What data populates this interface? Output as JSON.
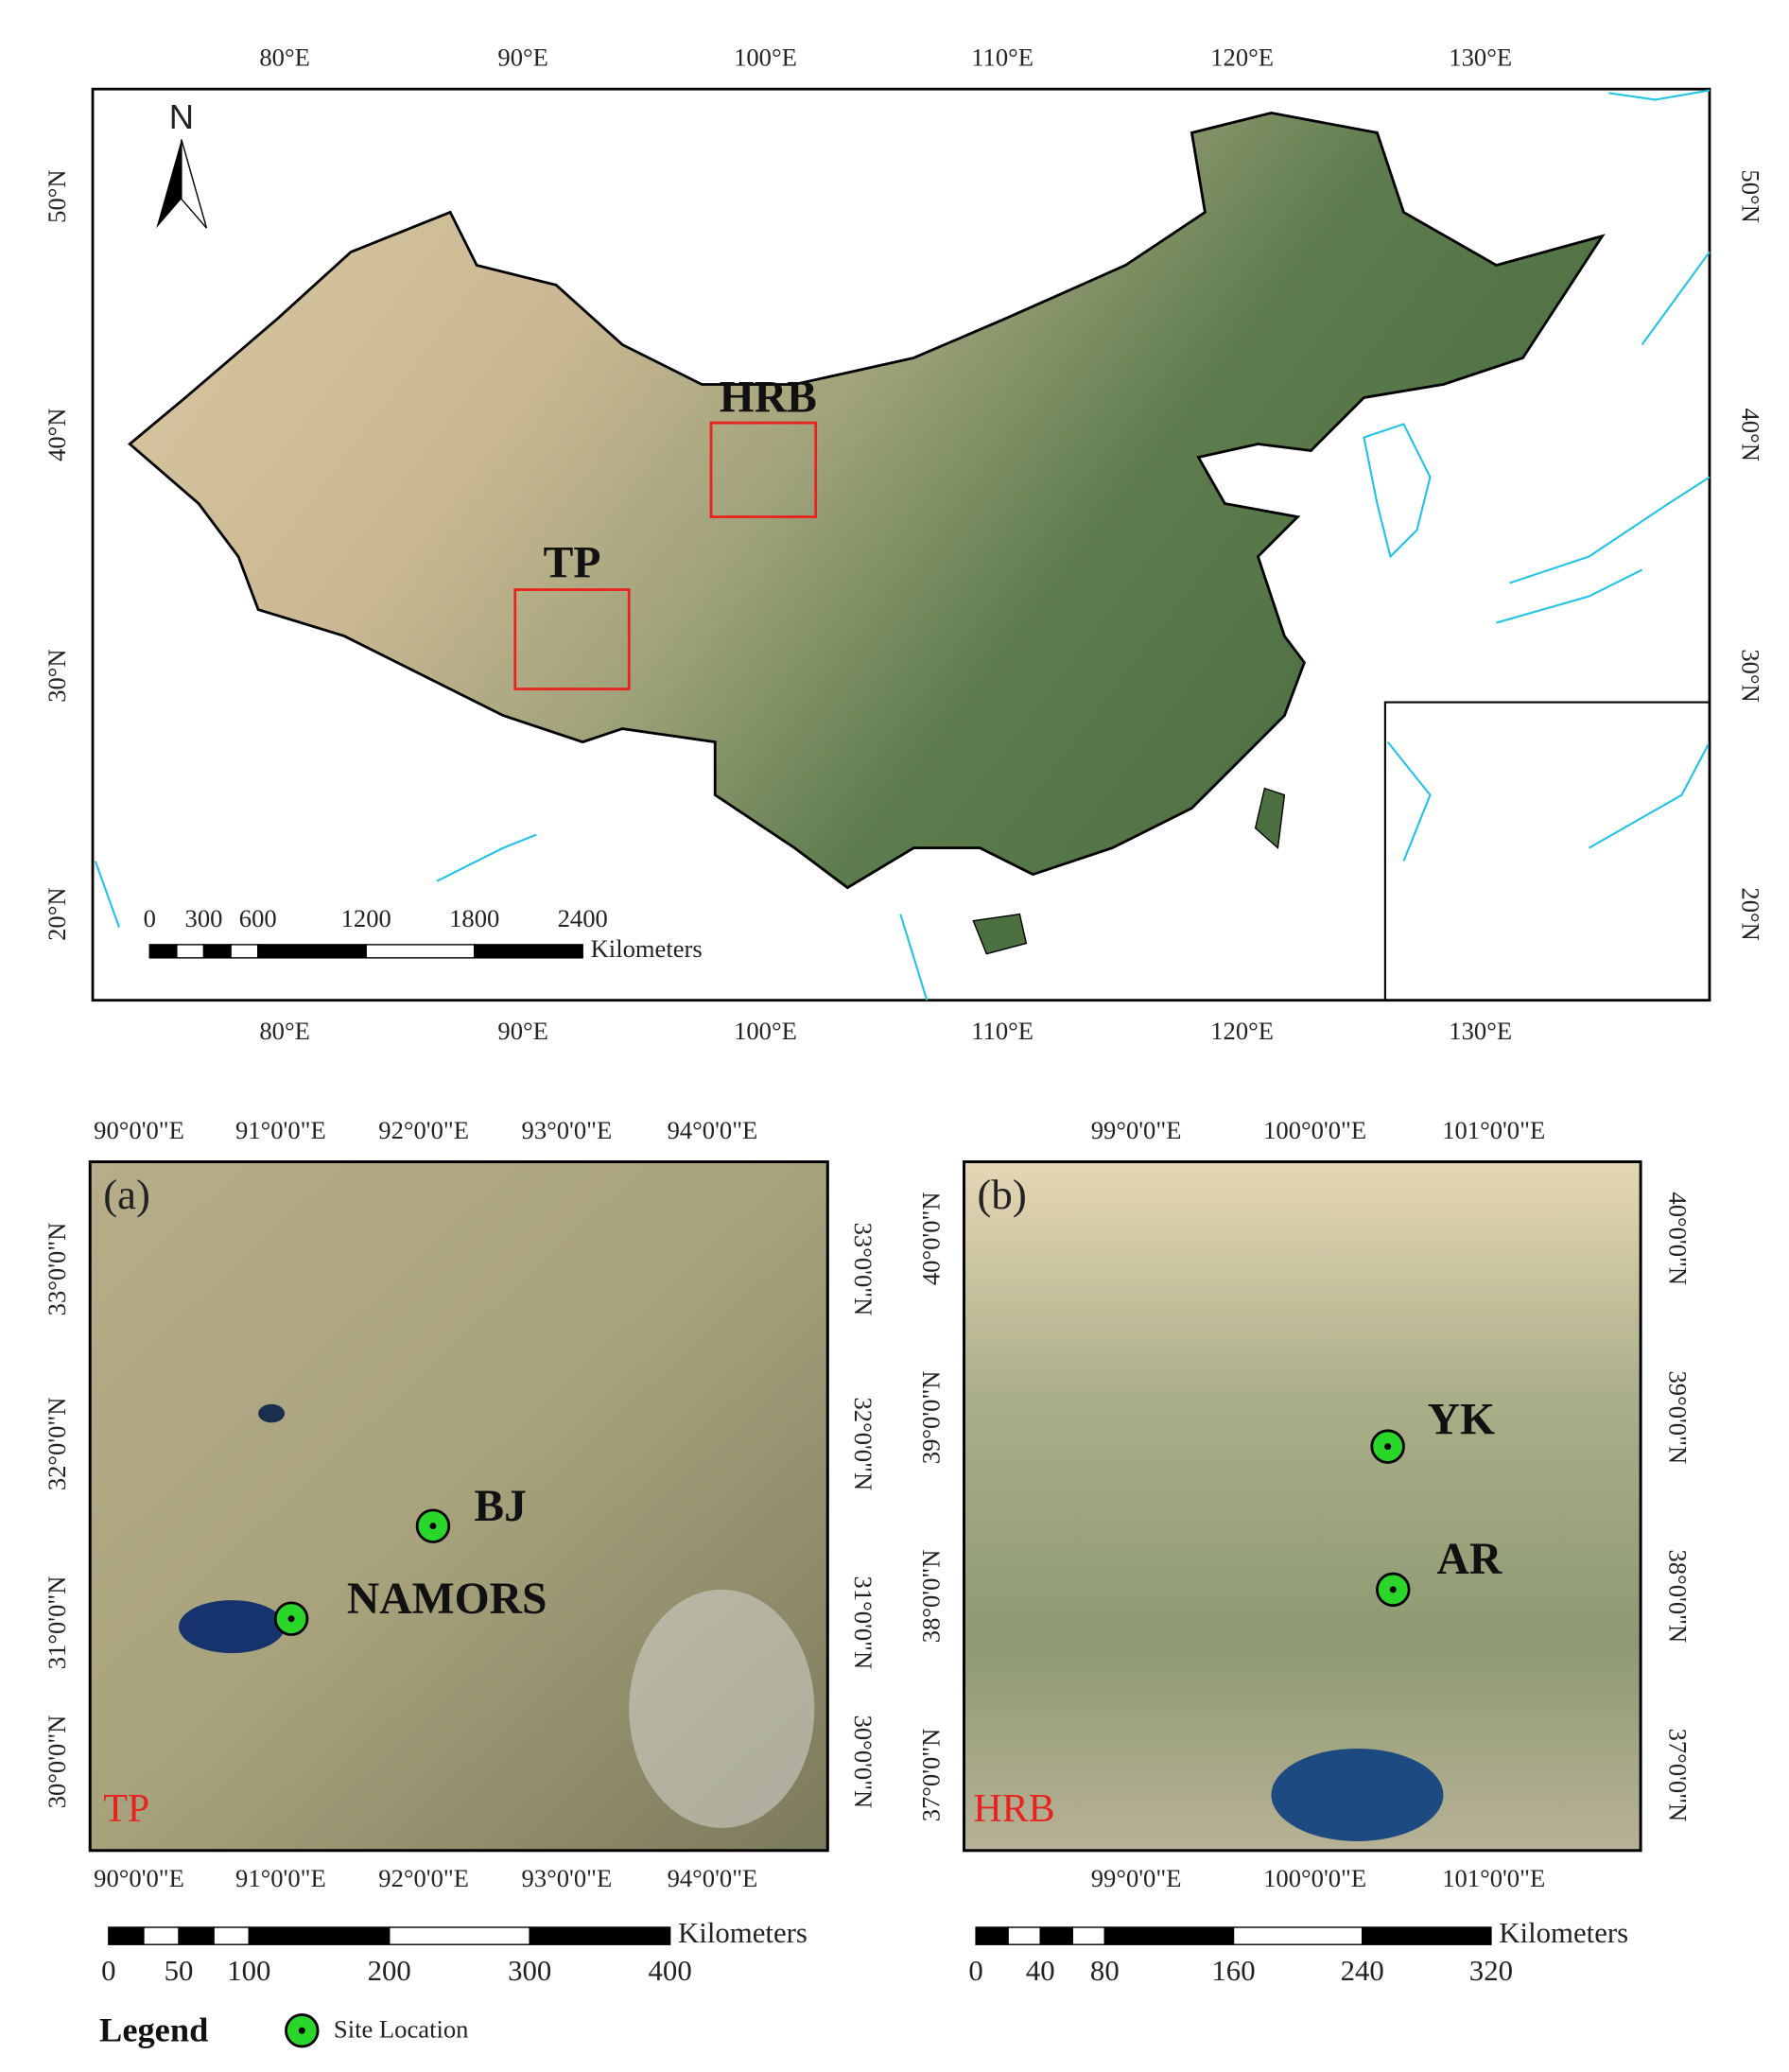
{
  "main_map": {
    "top_labels": [
      "80°E",
      "90°E",
      "100°E",
      "110°E",
      "120°E",
      "130°E"
    ],
    "bottom_labels": [
      "80°E",
      "90°E",
      "100°E",
      "110°E",
      "120°E",
      "130°E"
    ],
    "left_labels": [
      "50°N",
      "40°N",
      "30°N",
      "20°N"
    ],
    "right_labels": [
      "50°N",
      "40°N",
      "30°N",
      "20°N"
    ],
    "north": "N",
    "regions": [
      "HRB",
      "TP"
    ],
    "scale_bar": {
      "ticks": [
        0,
        300,
        600,
        1200,
        1800,
        2400
      ],
      "unit": "Kilometers"
    }
  },
  "panel_a": {
    "tag": "(a)",
    "region": "TP",
    "top_labels": [
      "90°0'0\"E",
      "91°0'0\"E",
      "92°0'0\"E",
      "93°0'0\"E",
      "94°0'0\"E"
    ],
    "bottom_labels": [
      "90°0'0\"E",
      "91°0'0\"E",
      "92°0'0\"E",
      "93°0'0\"E",
      "94°0'0\"E"
    ],
    "left_labels": [
      "33°0'0\"N",
      "32°0'0\"N",
      "31°0'0\"N",
      "30°0'0\"N"
    ],
    "right_labels": [
      "33°0'0\"N",
      "32°0'0\"N",
      "31°0'0\"N",
      "30°0'0\"N"
    ],
    "sites": [
      "BJ",
      "NAMORS"
    ],
    "scale_bar": {
      "ticks": [
        0,
        50,
        100,
        200,
        300,
        400
      ],
      "unit": "Kilometers"
    }
  },
  "panel_b": {
    "tag": "(b)",
    "region": "HRB",
    "top_labels": [
      "99°0'0\"E",
      "100°0'0\"E",
      "101°0'0\"E"
    ],
    "bottom_labels": [
      "99°0'0\"E",
      "100°0'0\"E",
      "101°0'0\"E"
    ],
    "left_labels": [
      "40°0'0\"N",
      "39°0'0\"N",
      "38°0'0\"N",
      "37°0'0\"N"
    ],
    "right_labels": [
      "40°0'0\"N",
      "39°0'0\"N",
      "38°0'0\"N",
      "37°0'0\"N"
    ],
    "sites": [
      "YK",
      "AR"
    ],
    "scale_bar": {
      "ticks": [
        0,
        40,
        80,
        160,
        240,
        320
      ],
      "unit": "Kilometers"
    }
  },
  "legend": {
    "title": "Legend",
    "item": "Site Location"
  }
}
